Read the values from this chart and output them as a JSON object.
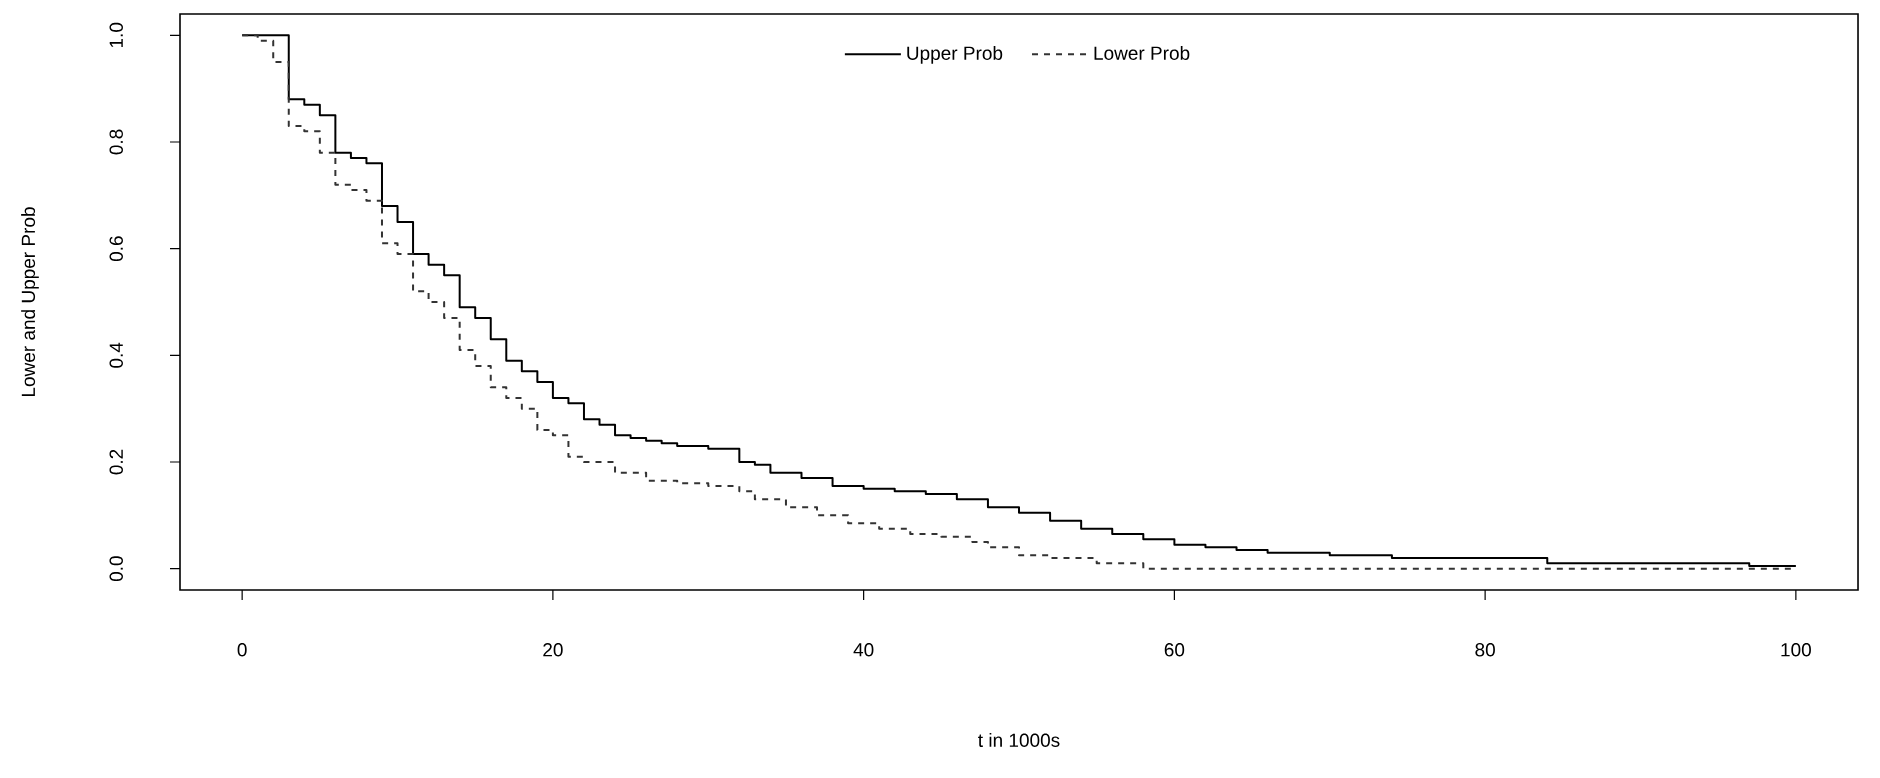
{
  "chart_data": {
    "type": "step",
    "xlabel": "t in 1000s",
    "ylabel": "Lower and Upper Prob",
    "xlim": [
      -4,
      104
    ],
    "ylim": [
      -0.04,
      1.04
    ],
    "xticks": [
      0,
      20,
      40,
      60,
      80,
      100
    ],
    "yticks": [
      {
        "value": 0,
        "label": "0.0"
      },
      {
        "value": 0.2,
        "label": "0.2"
      },
      {
        "value": 0.4,
        "label": "0.4"
      },
      {
        "value": 0.6,
        "label": "0.6"
      },
      {
        "value": 0.8,
        "label": "0.8"
      },
      {
        "value": 1,
        "label": "1.0"
      }
    ],
    "legend": "top",
    "marker": "none",
    "grid": false,
    "series": [
      {
        "name": "Upper  Prob",
        "color": "#000000",
        "line_style": "solid",
        "x": [
          0,
          2,
          3,
          4,
          5,
          6,
          7,
          8,
          9,
          10,
          11,
          12,
          13,
          14,
          15,
          16,
          17,
          18,
          19,
          20,
          21,
          22,
          23,
          24,
          25,
          26,
          27,
          28,
          30,
          32,
          33,
          34,
          36,
          38,
          40,
          42,
          44,
          46,
          48,
          50,
          52,
          54,
          56,
          58,
          60,
          62,
          64,
          66,
          70,
          74,
          84,
          97,
          100
        ],
        "values": [
          1.0,
          1.0,
          0.88,
          0.87,
          0.85,
          0.78,
          0.77,
          0.76,
          0.68,
          0.65,
          0.59,
          0.57,
          0.55,
          0.49,
          0.47,
          0.43,
          0.39,
          0.37,
          0.35,
          0.32,
          0.31,
          0.28,
          0.27,
          0.25,
          0.245,
          0.24,
          0.235,
          0.23,
          0.225,
          0.2,
          0.195,
          0.18,
          0.17,
          0.155,
          0.15,
          0.145,
          0.14,
          0.13,
          0.115,
          0.105,
          0.09,
          0.075,
          0.065,
          0.055,
          0.045,
          0.04,
          0.035,
          0.03,
          0.025,
          0.02,
          0.01,
          0.005,
          0.005
        ]
      },
      {
        "name": "Lower  Prob",
        "color": "#333333",
        "line_style": "dashed",
        "x": [
          0,
          1,
          2,
          3,
          4,
          5,
          6,
          7,
          8,
          9,
          10,
          11,
          12,
          13,
          14,
          15,
          16,
          17,
          18,
          19,
          20,
          21,
          22,
          24,
          26,
          28,
          30,
          32,
          33,
          35,
          37,
          39,
          41,
          43,
          45,
          47,
          48,
          50,
          52,
          55,
          58,
          100
        ],
        "values": [
          1.0,
          0.99,
          0.95,
          0.83,
          0.82,
          0.78,
          0.72,
          0.71,
          0.69,
          0.61,
          0.59,
          0.52,
          0.5,
          0.47,
          0.41,
          0.38,
          0.34,
          0.32,
          0.3,
          0.26,
          0.25,
          0.21,
          0.2,
          0.18,
          0.165,
          0.16,
          0.155,
          0.145,
          0.13,
          0.115,
          0.1,
          0.085,
          0.075,
          0.065,
          0.06,
          0.05,
          0.04,
          0.025,
          0.02,
          0.01,
          0.0,
          0.0
        ]
      }
    ]
  }
}
